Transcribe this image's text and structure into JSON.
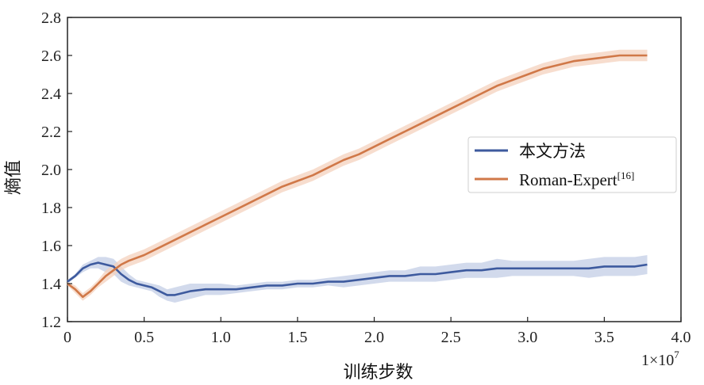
{
  "chart_data": {
    "type": "line",
    "title": "",
    "xlabel": "训练步数",
    "ylabel": "熵值",
    "x_multiplier_label": "1×10",
    "x_multiplier_exponent": "7",
    "xlim": [
      0,
      4.0
    ],
    "ylim": [
      1.2,
      2.8
    ],
    "x_ticks": [
      "0",
      "0.5",
      "1.0",
      "1.5",
      "2.0",
      "2.5",
      "3.0",
      "3.5",
      "4.0"
    ],
    "y_ticks": [
      "1.2",
      "1.4",
      "1.6",
      "1.8",
      "2.0",
      "2.2",
      "2.4",
      "2.6",
      "2.8"
    ],
    "x_tick_values": [
      0,
      0.5,
      1.0,
      1.5,
      2.0,
      2.5,
      3.0,
      3.5,
      4.0
    ],
    "y_tick_values": [
      1.2,
      1.4,
      1.6,
      1.8,
      2.0,
      2.2,
      2.4,
      2.6,
      2.8
    ],
    "grid": false,
    "legend_position": "center-right",
    "series": [
      {
        "name": "本文方法",
        "color": "#3d5a9e",
        "band_color": "#c3cde6",
        "x": [
          0.0,
          0.05,
          0.1,
          0.15,
          0.2,
          0.25,
          0.3,
          0.35,
          0.4,
          0.45,
          0.5,
          0.55,
          0.6,
          0.65,
          0.7,
          0.8,
          0.9,
          1.0,
          1.1,
          1.2,
          1.3,
          1.4,
          1.5,
          1.6,
          1.7,
          1.8,
          1.9,
          2.0,
          2.1,
          2.2,
          2.3,
          2.4,
          2.5,
          2.6,
          2.7,
          2.8,
          2.9,
          3.0,
          3.1,
          3.2,
          3.3,
          3.4,
          3.5,
          3.6,
          3.7,
          3.78
        ],
        "values": [
          1.41,
          1.44,
          1.48,
          1.5,
          1.51,
          1.5,
          1.49,
          1.45,
          1.42,
          1.4,
          1.39,
          1.38,
          1.36,
          1.34,
          1.34,
          1.36,
          1.37,
          1.37,
          1.37,
          1.38,
          1.39,
          1.39,
          1.4,
          1.4,
          1.41,
          1.41,
          1.42,
          1.43,
          1.44,
          1.44,
          1.45,
          1.45,
          1.46,
          1.47,
          1.47,
          1.48,
          1.48,
          1.48,
          1.48,
          1.48,
          1.48,
          1.48,
          1.49,
          1.49,
          1.49,
          1.5
        ],
        "band": [
          0.01,
          0.01,
          0.02,
          0.02,
          0.03,
          0.04,
          0.04,
          0.04,
          0.03,
          0.02,
          0.02,
          0.02,
          0.03,
          0.03,
          0.04,
          0.04,
          0.03,
          0.03,
          0.02,
          0.02,
          0.02,
          0.02,
          0.02,
          0.02,
          0.02,
          0.03,
          0.03,
          0.03,
          0.03,
          0.03,
          0.04,
          0.04,
          0.04,
          0.04,
          0.04,
          0.05,
          0.04,
          0.04,
          0.04,
          0.04,
          0.04,
          0.05,
          0.05,
          0.05,
          0.05,
          0.05
        ]
      },
      {
        "name": "Roman-Expert",
        "name_suffix": "[16]",
        "color": "#d07848",
        "band_color": "#f4d1bd",
        "x": [
          0.0,
          0.05,
          0.1,
          0.15,
          0.2,
          0.25,
          0.3,
          0.35,
          0.4,
          0.5,
          0.6,
          0.7,
          0.8,
          0.9,
          1.0,
          1.1,
          1.2,
          1.3,
          1.4,
          1.5,
          1.6,
          1.7,
          1.8,
          1.9,
          2.0,
          2.1,
          2.2,
          2.3,
          2.4,
          2.5,
          2.6,
          2.7,
          2.8,
          2.9,
          3.0,
          3.1,
          3.2,
          3.3,
          3.4,
          3.5,
          3.6,
          3.7,
          3.78
        ],
        "values": [
          1.4,
          1.37,
          1.33,
          1.36,
          1.4,
          1.44,
          1.47,
          1.5,
          1.52,
          1.55,
          1.59,
          1.63,
          1.67,
          1.71,
          1.75,
          1.79,
          1.83,
          1.87,
          1.91,
          1.94,
          1.97,
          2.01,
          2.05,
          2.08,
          2.12,
          2.16,
          2.2,
          2.24,
          2.28,
          2.32,
          2.36,
          2.4,
          2.44,
          2.47,
          2.5,
          2.53,
          2.55,
          2.57,
          2.58,
          2.59,
          2.6,
          2.6,
          2.6
        ],
        "band": [
          0.01,
          0.02,
          0.02,
          0.02,
          0.02,
          0.03,
          0.03,
          0.03,
          0.03,
          0.03,
          0.03,
          0.03,
          0.03,
          0.03,
          0.03,
          0.03,
          0.03,
          0.03,
          0.03,
          0.03,
          0.03,
          0.03,
          0.03,
          0.03,
          0.03,
          0.03,
          0.03,
          0.03,
          0.03,
          0.03,
          0.03,
          0.03,
          0.03,
          0.03,
          0.03,
          0.03,
          0.03,
          0.03,
          0.03,
          0.03,
          0.03,
          0.03,
          0.03
        ]
      }
    ]
  }
}
